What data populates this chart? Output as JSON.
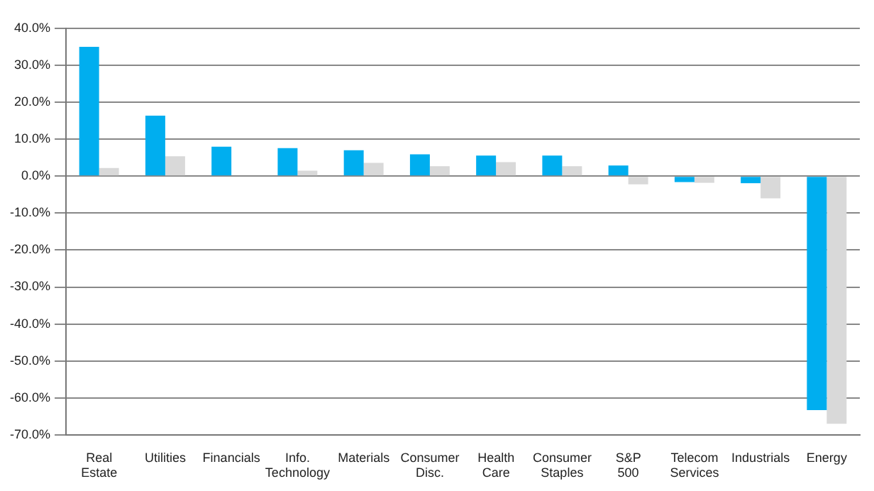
{
  "chart_data": {
    "type": "bar",
    "categories": [
      "Real Estate",
      "Utilities",
      "Financials",
      "Info. Technology",
      "Materials",
      "Consumer Disc.",
      "Health Care",
      "Consumer Staples",
      "S&P 500",
      "Telecom Services",
      "Industrials",
      "Energy"
    ],
    "series": [
      {
        "color": "#00aeef",
        "values": [
          35.0,
          16.4,
          8.0,
          7.6,
          7.0,
          5.9,
          5.6,
          5.6,
          2.9,
          -1.6,
          -1.9,
          -63.3
        ]
      },
      {
        "color": "#d9d9d9",
        "values": [
          2.2,
          5.4,
          null,
          1.5,
          3.6,
          2.7,
          3.8,
          2.7,
          -2.2,
          -1.8,
          -6.0,
          -67.0
        ]
      }
    ],
    "ylim": [
      -70,
      40
    ],
    "yticks": [
      {
        "value": -70,
        "label": "-70.0%"
      },
      {
        "value": -60,
        "label": "-60.0%"
      },
      {
        "value": -50,
        "label": "-50.0%"
      },
      {
        "value": -40,
        "label": "-40.0%"
      },
      {
        "value": -30,
        "label": "-30.0%"
      },
      {
        "value": -20,
        "label": "-20.0%"
      },
      {
        "value": -10,
        "label": "-10.0%"
      },
      {
        "value": 0,
        "label": "0.0%"
      },
      {
        "value": 10,
        "label": "10.0%"
      },
      {
        "value": 20,
        "label": "20.0%"
      },
      {
        "value": 30,
        "label": "30.0%"
      },
      {
        "value": 40,
        "label": "40.0%"
      }
    ],
    "grid": "y",
    "legend": false
  }
}
